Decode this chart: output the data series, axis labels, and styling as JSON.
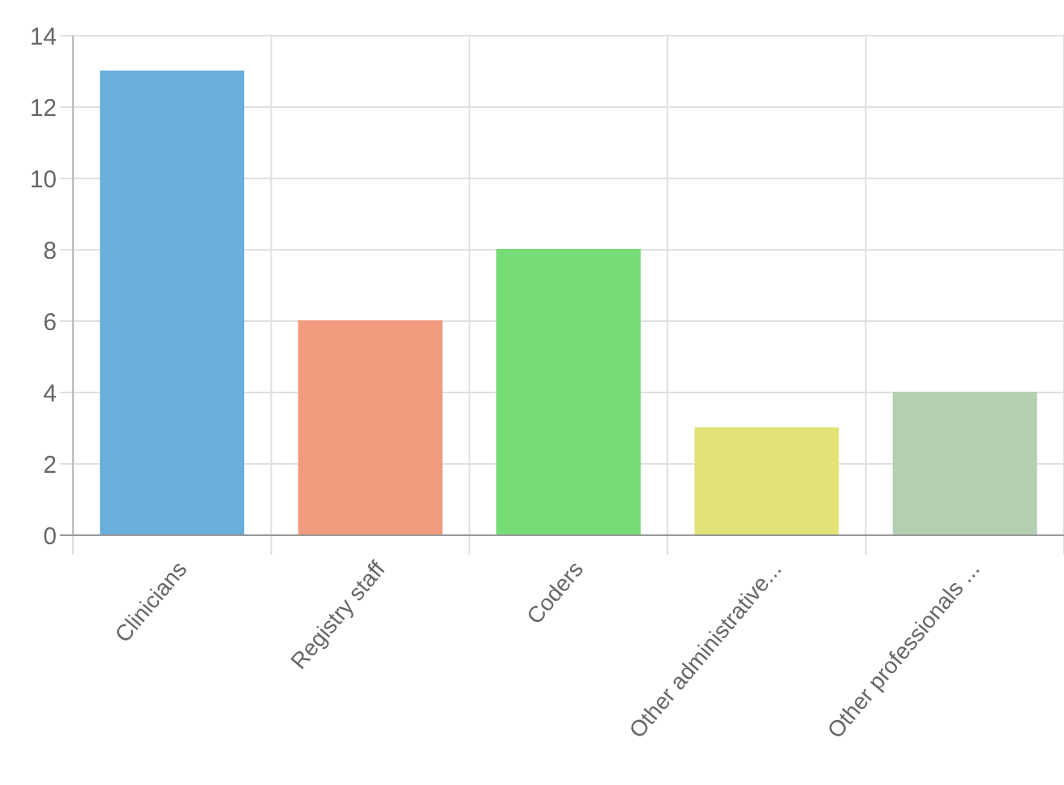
{
  "chart_data": {
    "type": "bar",
    "categories": [
      "Clinicians",
      "Registry staff",
      "Coders",
      "Other administrative...",
      "Other professionals ..."
    ],
    "values": [
      13,
      6,
      8,
      3,
      4
    ],
    "colors": [
      "#6aaedc",
      "#f09a7e",
      "#76dc76",
      "#e2e276",
      "#b4cfb2"
    ],
    "ylim": [
      0,
      14
    ],
    "yticks": [
      0,
      2,
      4,
      6,
      8,
      10,
      12,
      14
    ],
    "grid": true
  }
}
